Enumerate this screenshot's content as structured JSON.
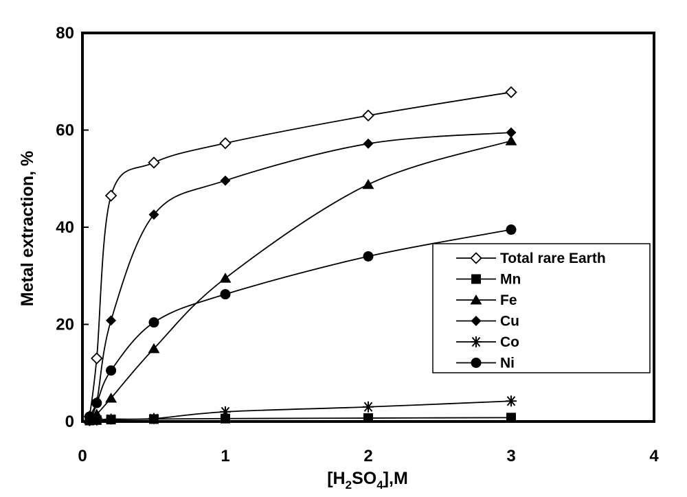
{
  "chart_data": {
    "type": "line",
    "title": "",
    "xlabel": "[H2SO4],M",
    "xlabel_parts": {
      "open": "[H",
      "sub1": "2",
      "mid": "SO",
      "sub2": "4",
      "close": "],M"
    },
    "ylabel": "Metal extraction, %",
    "xlim": [
      0,
      4
    ],
    "ylim": [
      0,
      80
    ],
    "xticks": [
      0,
      1,
      2,
      3,
      4
    ],
    "yticks": [
      0,
      20,
      40,
      60,
      80
    ],
    "grid": false,
    "legend_position": "right",
    "series": [
      {
        "name": "Total rare Earth",
        "marker": "diamond-open",
        "x": [
          0.05,
          0.1,
          0.2,
          0.5,
          1,
          2,
          3
        ],
        "y": [
          1,
          13,
          46.5,
          53.3,
          57.3,
          63,
          67.8
        ]
      },
      {
        "name": "Mn",
        "marker": "square",
        "x": [
          0.05,
          0.1,
          0.2,
          0.5,
          1,
          2,
          3
        ],
        "y": [
          0.2,
          0.3,
          0.4,
          0.5,
          0.6,
          0.7,
          0.8
        ]
      },
      {
        "name": "Fe",
        "marker": "triangle",
        "x": [
          0.05,
          0.1,
          0.2,
          0.5,
          1,
          2,
          3
        ],
        "y": [
          0.5,
          1.5,
          4.8,
          15,
          29.5,
          48.8,
          57.8
        ]
      },
      {
        "name": "Cu",
        "marker": "diamond-filled",
        "x": [
          0.05,
          0.1,
          0.2,
          0.5,
          1,
          2,
          3
        ],
        "y": [
          1,
          4,
          20.8,
          42.6,
          49.6,
          57.2,
          59.5
        ]
      },
      {
        "name": "Co",
        "marker": "asterisk",
        "x": [
          0.05,
          0.1,
          0.2,
          0.5,
          1,
          2,
          3
        ],
        "y": [
          0.2,
          0.3,
          0.5,
          0.6,
          2,
          3,
          4.2
        ]
      },
      {
        "name": "Ni",
        "marker": "circle",
        "x": [
          0.05,
          0.1,
          0.2,
          0.5,
          1,
          2,
          3
        ],
        "y": [
          1,
          3.8,
          10.5,
          20.4,
          26.2,
          34,
          39.5
        ]
      }
    ]
  }
}
